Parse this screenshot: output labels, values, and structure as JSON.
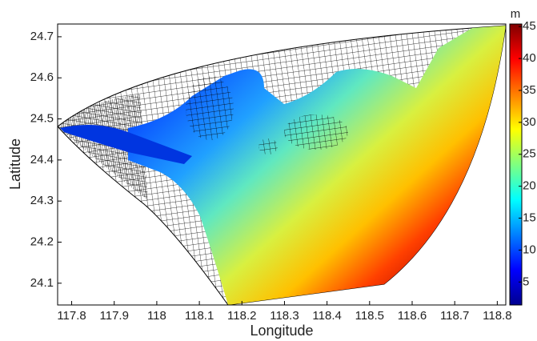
{
  "chart_data": {
    "type": "map",
    "x_label": "Longitude",
    "y_label": "Latitude",
    "xlim": [
      117.767,
      118.82
    ],
    "ylim": [
      24.047,
      24.731
    ],
    "xticks": [
      117.8,
      117.9,
      118,
      118.1,
      118.2,
      118.3,
      118.4,
      118.5,
      118.6,
      118.7,
      118.8
    ],
    "yticks": [
      24.1,
      24.2,
      24.3,
      24.4,
      24.5,
      24.6,
      24.7
    ],
    "colorbar": {
      "unit": "m",
      "clim": [
        1.4,
        45.4
      ],
      "ticks": [
        5,
        10,
        15,
        20,
        25,
        30,
        35,
        40,
        45
      ],
      "colormap": "jet"
    }
  }
}
